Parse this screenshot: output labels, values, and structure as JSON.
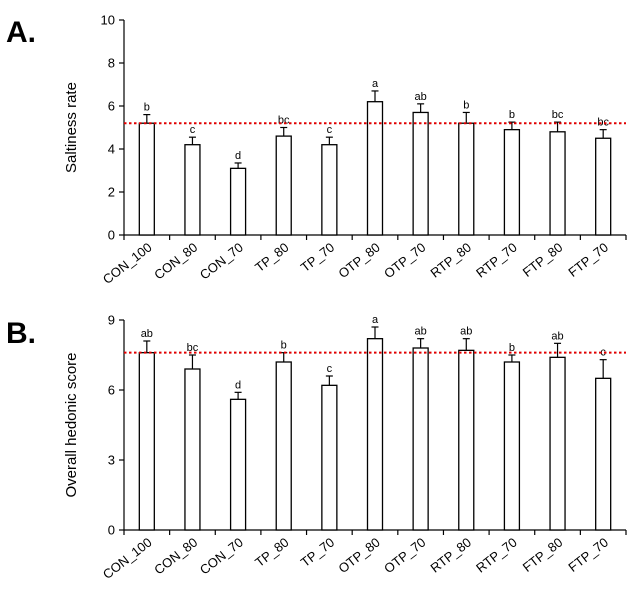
{
  "chart_data": [
    {
      "type": "bar",
      "panel_label": "A.",
      "ylabel": "Saltiness rate",
      "xlabel": "",
      "ylim": [
        0,
        10
      ],
      "yticks": [
        "0",
        "2",
        "4",
        "6",
        "8",
        "10"
      ],
      "categories": [
        "CON_100",
        "CON_80",
        "CON_70",
        "TP_80",
        "TP_70",
        "OTP_80",
        "OTP_70",
        "RTP_80",
        "RTP_70",
        "FTP_80",
        "FTP_70"
      ],
      "values": [
        5.2,
        4.2,
        3.1,
        4.6,
        4.2,
        6.2,
        5.7,
        5.2,
        4.9,
        4.8,
        4.5
      ],
      "errors": [
        0.4,
        0.35,
        0.25,
        0.4,
        0.35,
        0.5,
        0.4,
        0.5,
        0.35,
        0.45,
        0.4
      ],
      "significance": [
        "b",
        "c",
        "d",
        "bc",
        "c",
        "a",
        "ab",
        "b",
        "b",
        "bc",
        "bc"
      ],
      "reference_line": 5.2,
      "reference_color": "#e00000",
      "grid": false
    },
    {
      "type": "bar",
      "panel_label": "B.",
      "ylabel": "Overall hedonic score",
      "xlabel": "",
      "ylim": [
        0,
        9
      ],
      "yticks": [
        "0",
        "3",
        "6",
        "9"
      ],
      "categories": [
        "CON_100",
        "CON_80",
        "CON_70",
        "TP_80",
        "TP_70",
        "OTP_80",
        "OTP_70",
        "RTP_80",
        "RTP_70",
        "FTP_80",
        "FTP_70"
      ],
      "values": [
        7.6,
        6.9,
        5.6,
        7.2,
        6.2,
        8.2,
        7.8,
        7.7,
        7.2,
        7.4,
        6.5
      ],
      "errors": [
        0.5,
        0.6,
        0.3,
        0.4,
        0.4,
        0.5,
        0.4,
        0.5,
        0.3,
        0.6,
        0.8
      ],
      "significance": [
        "ab",
        "bc",
        "d",
        "b",
        "c",
        "a",
        "ab",
        "ab",
        "b",
        "ab",
        "c"
      ],
      "reference_line": 7.6,
      "reference_color": "#e00000",
      "grid": false
    }
  ]
}
